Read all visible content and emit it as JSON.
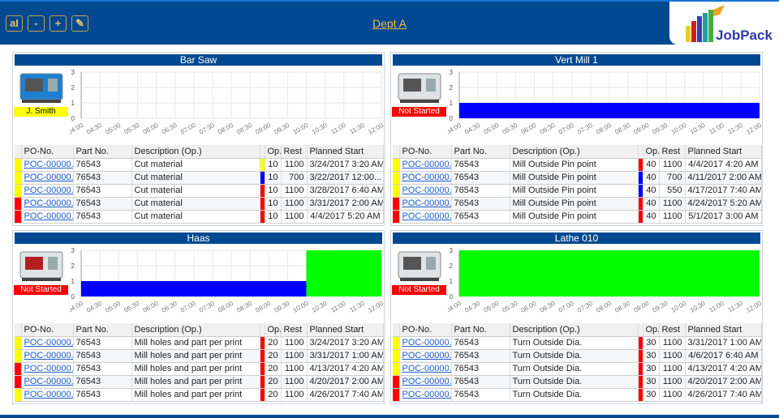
{
  "header": {
    "title": "Dept A",
    "buttons": [
      {
        "name": "text-size-icon",
        "label": "aI"
      },
      {
        "name": "zoom-out-button",
        "label": "-"
      },
      {
        "name": "zoom-in-button",
        "label": "+"
      },
      {
        "name": "edit-icon",
        "label": "✎"
      }
    ],
    "logo_text": "JobPack"
  },
  "colors": {
    "yellow": "#ffff00",
    "red": "#ff0000",
    "blue": "#0000ff",
    "green": "#00ff00",
    "header": "#004990"
  },
  "columns": [
    "PO-No.",
    "Part No.",
    "Description (Op.)",
    "Op.",
    "Rest",
    "Planned Start"
  ],
  "time_ticks": [
    "04:00",
    "04:30",
    "05:00",
    "05:30",
    "06:00",
    "06:30",
    "07:00",
    "07:30",
    "08:00",
    "08:30",
    "09:00",
    "09:30",
    "10:00",
    "10:30",
    "11:00",
    "11:30",
    "12:00"
  ],
  "y_ticks": [
    0,
    1,
    2,
    3
  ],
  "panels": [
    {
      "name": "Bar Saw",
      "badge": "J. Smith",
      "badge_color": "yellow",
      "bars": [],
      "rows": [
        {
          "status": "yellow",
          "po": "POC-00000...",
          "part": "76543",
          "desc": "Cut material",
          "op_status": "yellow",
          "op": "10",
          "rest": "1100",
          "start": "3/24/2017 3:20 AM"
        },
        {
          "status": "yellow",
          "po": "POC-00000...",
          "part": "76543",
          "desc": "Cut material",
          "op_status": "blue",
          "op": "10",
          "rest": "700",
          "start": "3/22/2017 12:00..."
        },
        {
          "status": "yellow",
          "po": "POC-00000...",
          "part": "76543",
          "desc": "Cut material",
          "op_status": "red",
          "op": "10",
          "rest": "1100",
          "start": "3/28/2017 6:40 AM"
        },
        {
          "status": "red",
          "po": "POC-00000...",
          "part": "76543",
          "desc": "Cut material",
          "op_status": "red",
          "op": "10",
          "rest": "1100",
          "start": "3/31/2017 2:00 AM"
        },
        {
          "status": "red",
          "po": "POC-00000...",
          "part": "76543",
          "desc": "Cut material",
          "op_status": "red",
          "op": "10",
          "rest": "1100",
          "start": "4/4/2017 5:20 AM"
        }
      ]
    },
    {
      "name": "Vert Mill 1",
      "badge": "Not Started",
      "badge_color": "red",
      "bars": [
        {
          "from": "04:00",
          "to": "12:00",
          "value": 1,
          "color": "blue"
        }
      ],
      "rows": [
        {
          "status": "yellow",
          "po": "POC-00000...",
          "part": "76543",
          "desc": "Mill Outside Pin point",
          "op_status": "red",
          "op": "40",
          "rest": "1100",
          "start": "4/4/2017 4:20 AM"
        },
        {
          "status": "yellow",
          "po": "POC-00000...",
          "part": "76543",
          "desc": "Mill Outside Pin point",
          "op_status": "blue",
          "op": "40",
          "rest": "700",
          "start": "4/11/2017 2:00 AM"
        },
        {
          "status": "yellow",
          "po": "POC-00000...",
          "part": "76543",
          "desc": "Mill Outside Pin point",
          "op_status": "blue",
          "op": "40",
          "rest": "550",
          "start": "4/17/2017 7:40 AM"
        },
        {
          "status": "red",
          "po": "POC-00000...",
          "part": "76543",
          "desc": "Mill Outside Pin point",
          "op_status": "red",
          "op": "40",
          "rest": "1100",
          "start": "4/24/2017 5:20 AM"
        },
        {
          "status": "red",
          "po": "POC-00000...",
          "part": "76543",
          "desc": "Mill Outside Pin point",
          "op_status": "red",
          "op": "40",
          "rest": "1100",
          "start": "5/1/2017 3:00 AM"
        }
      ]
    },
    {
      "name": "Haas",
      "badge": "Not Started",
      "badge_color": "red",
      "bars": [
        {
          "from": "04:00",
          "to": "10:00",
          "value": 1,
          "color": "blue"
        },
        {
          "from": "10:00",
          "to": "12:00",
          "value": 3,
          "color": "green"
        }
      ],
      "rows": [
        {
          "status": "yellow",
          "po": "POC-00000...",
          "part": "76543",
          "desc": "Mill holes and part per print",
          "op_status": "red",
          "op": "20",
          "rest": "1100",
          "start": "3/24/2017 3:20 AM"
        },
        {
          "status": "yellow",
          "po": "POC-00000...",
          "part": "76543",
          "desc": "Mill holes and part per print",
          "op_status": "red",
          "op": "20",
          "rest": "1100",
          "start": "3/31/2017 1:00 AM"
        },
        {
          "status": "red",
          "po": "POC-00000...",
          "part": "76543",
          "desc": "Mill holes and part per print",
          "op_status": "red",
          "op": "20",
          "rest": "1100",
          "start": "4/13/2017 4:20 AM"
        },
        {
          "status": "red",
          "po": "POC-00000...",
          "part": "76543",
          "desc": "Mill holes and part per print",
          "op_status": "red",
          "op": "20",
          "rest": "1100",
          "start": "4/20/2017 2:00 AM"
        },
        {
          "status": "yellow",
          "po": "POC-00000...",
          "part": "76543",
          "desc": "Mill holes and part per print",
          "op_status": "red",
          "op": "20",
          "rest": "1100",
          "start": "4/26/2017 7:40 AM"
        }
      ]
    },
    {
      "name": "Lathe 010",
      "badge": "Not Started",
      "badge_color": "red",
      "bars": [
        {
          "from": "04:00",
          "to": "12:00",
          "value": 3,
          "color": "green"
        }
      ],
      "rows": [
        {
          "status": "yellow",
          "po": "POC-00000...",
          "part": "76543",
          "desc": "Turn Outside Dia.",
          "op_status": "red",
          "op": "30",
          "rest": "1100",
          "start": "3/31/2017 1:00 AM"
        },
        {
          "status": "yellow",
          "po": "POC-00000...",
          "part": "76543",
          "desc": "Turn Outside Dia.",
          "op_status": "red",
          "op": "30",
          "rest": "1100",
          "start": "4/6/2017 6:40 AM"
        },
        {
          "status": "yellow",
          "po": "POC-00000...",
          "part": "76543",
          "desc": "Turn Outside Dia.",
          "op_status": "red",
          "op": "30",
          "rest": "1100",
          "start": "4/13/2017 4:20 AM"
        },
        {
          "status": "red",
          "po": "POC-00000...",
          "part": "76543",
          "desc": "Turn Outside Dia.",
          "op_status": "red",
          "op": "30",
          "rest": "1100",
          "start": "4/20/2017 2:00 AM"
        },
        {
          "status": "red",
          "po": "POC-00000...",
          "part": "76543",
          "desc": "Turn Outside Dia.",
          "op_status": "red",
          "op": "30",
          "rest": "1100",
          "start": "4/26/2017 7:40 AM"
        }
      ]
    }
  ]
}
